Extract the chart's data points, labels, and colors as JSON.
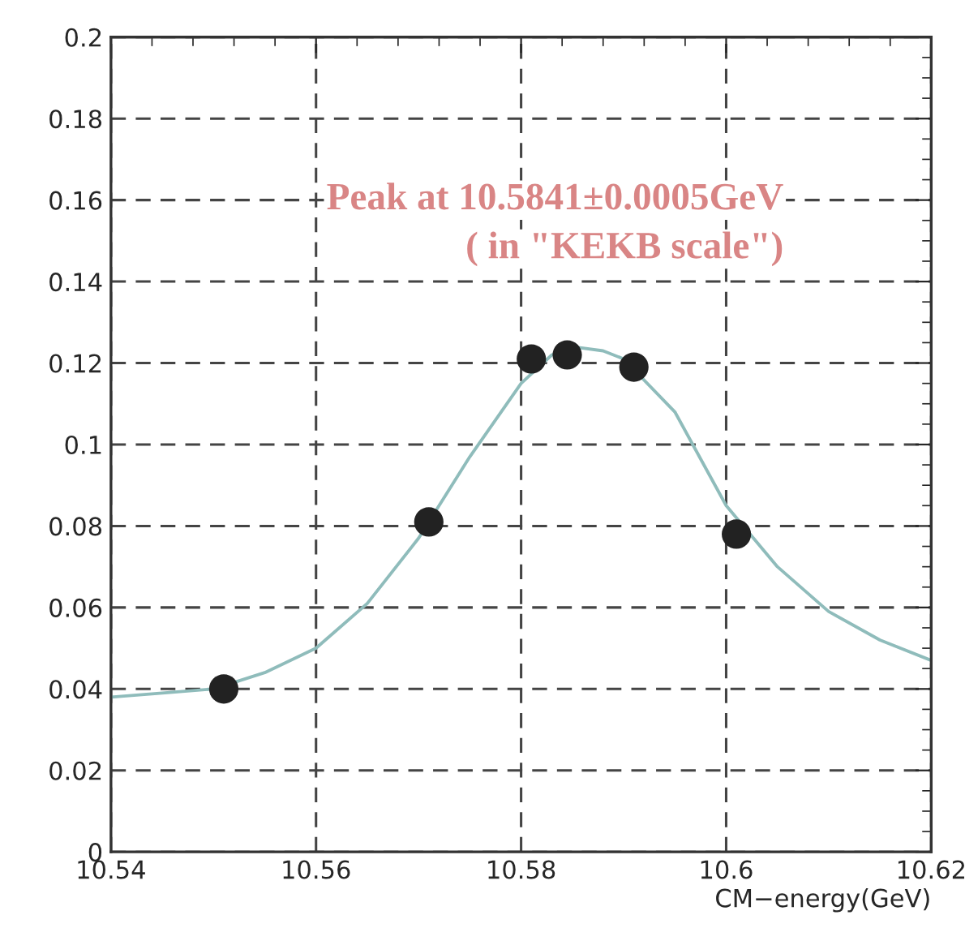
{
  "chart_data": {
    "type": "scatter",
    "xlabel": "CM−energy(GeV)",
    "annotations": [
      "Peak at 10.5841±0.0005GeV",
      "( in \"KEKB scale\")"
    ],
    "series": [
      {
        "marker": "circle",
        "color": "#222222",
        "x": [
          10.551,
          10.571,
          10.581,
          10.5845,
          10.591,
          10.601
        ],
        "values": [
          0.04,
          0.081,
          0.121,
          0.122,
          0.119,
          0.078
        ]
      },
      {
        "type": "line",
        "color": "#8fbcbb",
        "x": [
          10.54,
          10.545,
          10.55,
          10.555,
          10.56,
          10.565,
          10.57,
          10.575,
          10.58,
          10.583,
          10.585,
          10.588,
          10.59,
          10.595,
          10.6,
          10.605,
          10.61,
          10.615,
          10.62
        ],
        "values": [
          0.038,
          0.039,
          0.04,
          0.044,
          0.05,
          0.061,
          0.077,
          0.097,
          0.115,
          0.122,
          0.124,
          0.123,
          0.121,
          0.108,
          0.085,
          0.07,
          0.059,
          0.052,
          0.047
        ]
      }
    ],
    "xlim": [
      10.54,
      10.62
    ],
    "xticks": [
      10.54,
      10.56,
      10.58,
      10.6,
      10.62
    ],
    "ylim": [
      0,
      0.2
    ],
    "yticks": [
      0,
      0.02,
      0.04,
      0.06,
      0.08,
      0.1,
      0.12,
      0.14,
      0.16,
      0.18,
      0.2
    ],
    "grid": true
  }
}
